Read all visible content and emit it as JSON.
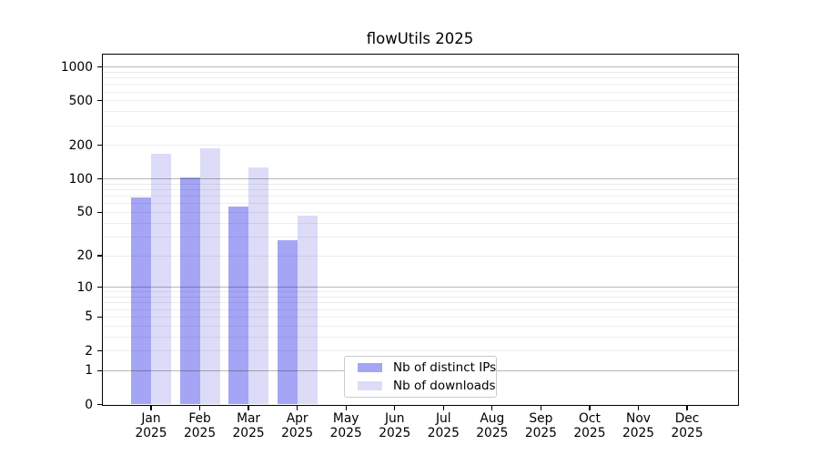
{
  "title": "flowUtils 2025",
  "chart_data": {
    "type": "bar",
    "title": "flowUtils 2025",
    "categories": [
      "Jan",
      "Feb",
      "Mar",
      "Apr",
      "May",
      "Jun",
      "Jul",
      "Aug",
      "Sep",
      "Oct",
      "Nov",
      "Dec"
    ],
    "x_tick_second_line": "2025",
    "series": [
      {
        "name": "Nb of distinct IPs",
        "color": "#a5a5f5",
        "values": [
          68,
          104,
          57,
          28,
          0,
          0,
          0,
          0,
          0,
          0,
          0,
          0
        ]
      },
      {
        "name": "Nb of downloads",
        "color": "#dcdcf8",
        "values": [
          168,
          188,
          128,
          47,
          0,
          0,
          0,
          0,
          0,
          0,
          0,
          0
        ]
      }
    ],
    "xlabel": "",
    "ylabel": "",
    "yscale": "log1p",
    "ylim": [
      0,
      1290
    ],
    "y_ticks": [
      0,
      1,
      2,
      5,
      10,
      20,
      50,
      100,
      200,
      500,
      1000
    ],
    "y_decade_gridlines": [
      1,
      10,
      100,
      1000
    ],
    "y_minor_gridlines": [
      3,
      4,
      6,
      7,
      8,
      9,
      30,
      40,
      60,
      70,
      80,
      90,
      300,
      400,
      600,
      700,
      800,
      900
    ],
    "grid": "on",
    "legend_position": "inside lower center"
  },
  "legend": {
    "items": [
      {
        "label": "Nb of distinct IPs",
        "color": "#a5a5f5"
      },
      {
        "label": "Nb of downloads",
        "color": "#dcdcf8"
      }
    ]
  },
  "colors": {
    "bar_distinct_ips": "#a5a5f5",
    "bar_downloads": "#dcdcf8",
    "grid_decade": "rgba(0,0,0,0.28)",
    "grid_minor": "rgba(0,0,0,0.07)",
    "axis": "#000000",
    "background": "#ffffff",
    "text": "#000000",
    "legend_border": "#cbcbcb"
  }
}
